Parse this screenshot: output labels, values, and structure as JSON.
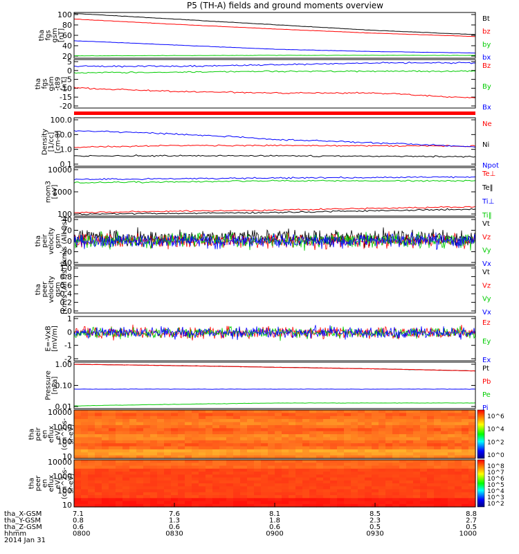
{
  "chart_data": {
    "title": "P5 (TH-A) fields and ground moments overview",
    "date": "2014 Jan 31",
    "x_ticks": [
      "0800",
      "0830",
      "0900",
      "0930",
      "1000"
    ],
    "x_extra_rows": [
      {
        "label": "tha_X-GSM",
        "values": [
          "7.1",
          "7.6",
          "8.1",
          "8.5",
          "8.8"
        ]
      },
      {
        "label": "tha_Y-GSM",
        "values": [
          "0.8",
          "1.3",
          "1.8",
          "2.3",
          "2.7"
        ]
      },
      {
        "label": "tha_Z-GSM",
        "values": [
          "0.6",
          "0.6",
          "0.6",
          "0.5",
          "0.5"
        ]
      },
      {
        "label": "hhmm",
        "values": [
          "0800",
          "0830",
          "0900",
          "0930",
          "1000"
        ]
      }
    ],
    "panels": [
      {
        "type": "line",
        "ylabel": [
          "tha",
          "fgs",
          "gsm",
          "[nT]"
        ],
        "yticks": [
          "100",
          "80",
          "60",
          "40",
          "20"
        ],
        "series": [
          {
            "name": "Bt",
            "color": "#000000",
            "values": [
              [
                0,
                100
              ],
              [
                0.25,
                88
              ],
              [
                0.5,
                76
              ],
              [
                0.75,
                64
              ],
              [
                1,
                55
              ]
            ]
          },
          {
            "name": "bz",
            "color": "#ff0000",
            "values": [
              [
                0,
                88
              ],
              [
                0.25,
                77
              ],
              [
                0.5,
                67
              ],
              [
                0.75,
                58
              ],
              [
                1,
                51
              ]
            ]
          },
          {
            "name": "by",
            "color": "#00cc00",
            "values": [
              [
                0,
                10
              ],
              [
                0.5,
                11
              ],
              [
                1,
                11
              ]
            ]
          },
          {
            "name": "bx",
            "color": "#0000ff",
            "values": [
              [
                0,
                42
              ],
              [
                0.25,
                33
              ],
              [
                0.5,
                24
              ],
              [
                0.75,
                19
              ],
              [
                1,
                16
              ]
            ]
          }
        ]
      },
      {
        "type": "line",
        "ylabel": [
          "tha",
          "fgs",
          "gsm",
          "-t89",
          "[nT]"
        ],
        "yticks": [
          "5",
          "0",
          "-5",
          "-10",
          "-15",
          "-20"
        ],
        "series": [
          {
            "name": "Bz",
            "color": "#ff0000",
            "values": [
              [
                0,
                -10
              ],
              [
                0.25,
                -12
              ],
              [
                0.5,
                -13
              ],
              [
                0.75,
                -13
              ],
              [
                1,
                -16
              ]
            ]
          },
          {
            "name": "By",
            "color": "#00cc00",
            "values": [
              [
                0,
                -1
              ],
              [
                0.5,
                0
              ],
              [
                1,
                0
              ]
            ]
          },
          {
            "name": "Bx",
            "color": "#0000ff",
            "values": [
              [
                0,
                3
              ],
              [
                0.3,
                3
              ],
              [
                0.5,
                4
              ],
              [
                0.75,
                5
              ],
              [
                1,
                5
              ]
            ]
          }
        ]
      },
      {
        "type": "line",
        "ylabel": [
          "Density",
          "[1/cc]",
          "[cm-3]"
        ],
        "yticks": [
          "100.0",
          "10.0",
          "1.0",
          "0.1"
        ],
        "series": [
          {
            "name": "Ne",
            "color": "#ff0000",
            "values": [
              [
                0,
                1.5
              ],
              [
                0.25,
                2
              ],
              [
                0.5,
                2
              ],
              [
                1,
                1.8
              ]
            ]
          },
          {
            "name": "Ni",
            "color": "#000000",
            "values": [
              [
                0,
                0.4
              ],
              [
                0.5,
                0.4
              ],
              [
                1,
                0.35
              ]
            ]
          },
          {
            "name": "Npot",
            "color": "#0000ff",
            "values": [
              [
                0,
                20
              ],
              [
                0.25,
                12
              ],
              [
                0.5,
                5
              ],
              [
                0.75,
                3
              ],
              [
                1,
                1.5
              ]
            ]
          }
        ]
      },
      {
        "type": "line",
        "ylabel": [
          "mom3",
          "[eV]"
        ],
        "yticks": [
          "10000",
          "1000",
          "100"
        ],
        "series": [
          {
            "name": "Te⊥",
            "color": "#ff0000",
            "values": [
              [
                0,
                60
              ],
              [
                0.5,
                80
              ],
              [
                1,
                120
              ]
            ]
          },
          {
            "name": "Te‖",
            "color": "#000000",
            "values": [
              [
                0,
                50
              ],
              [
                0.5,
                60
              ],
              [
                1,
                90
              ]
            ]
          },
          {
            "name": "Ti⊥",
            "color": "#0000ff",
            "values": [
              [
                0,
                3000
              ],
              [
                0.5,
                3500
              ],
              [
                1,
                4000
              ]
            ]
          },
          {
            "name": "Ti‖",
            "color": "#00cc00",
            "values": [
              [
                0,
                2000
              ],
              [
                0.5,
                2500
              ],
              [
                1,
                2500
              ]
            ]
          }
        ]
      },
      {
        "type": "noise",
        "ylabel": [
          "tha",
          "peir",
          "velocity",
          "gsm",
          "[km/s (All Qs)]"
        ],
        "yticks": [
          "40",
          "20",
          "0",
          "-20",
          "-40"
        ],
        "series": [
          {
            "name": "Vt",
            "color": "#000000"
          },
          {
            "name": "Vz",
            "color": "#ff0000"
          },
          {
            "name": "Vy",
            "color": "#00cc00"
          },
          {
            "name": "Vx",
            "color": "#0000ff"
          }
        ]
      },
      {
        "type": "empty",
        "ylabel": [
          "tha",
          "peer",
          "velocity",
          "gsm",
          "[km/s (All Qs)]"
        ],
        "yticks": [
          "1.0",
          "0.8",
          "0.6",
          "0.4",
          "0.2",
          "0.0"
        ],
        "series": [
          {
            "name": "Vt",
            "color": "#000000"
          },
          {
            "name": "Vz",
            "color": "#ff0000"
          },
          {
            "name": "Vy",
            "color": "#00cc00"
          },
          {
            "name": "Vx",
            "color": "#0000ff"
          }
        ]
      },
      {
        "type": "noise",
        "ylabel": [
          "E=-VxB",
          "[mV/m]"
        ],
        "yticks": [
          "1",
          "0",
          "-1",
          "-2"
        ],
        "series": [
          {
            "name": "Ez",
            "color": "#ff0000"
          },
          {
            "name": "Ey",
            "color": "#00cc00"
          },
          {
            "name": "Ex",
            "color": "#0000ff"
          }
        ]
      },
      {
        "type": "line",
        "ylabel": [
          "Pressure",
          "[nPa]"
        ],
        "yticks": [
          "1.00",
          "0.10",
          "0.01"
        ],
        "series": [
          {
            "name": "Pt",
            "color": "#000000",
            "values": [
              [
                0,
                3
              ],
              [
                0.5,
                2
              ],
              [
                1,
                1.2
              ]
            ]
          },
          {
            "name": "Pb",
            "color": "#ff0000",
            "values": [
              [
                0,
                3
              ],
              [
                0.5,
                2
              ],
              [
                1,
                1.2
              ]
            ]
          },
          {
            "name": "Pe",
            "color": "#00cc00",
            "values": [
              [
                0,
                0.01
              ],
              [
                0.5,
                0.015
              ],
              [
                1,
                0.015
              ]
            ]
          },
          {
            "name": "Pi",
            "color": "#0000ff",
            "values": [
              [
                0,
                0.1
              ],
              [
                0.5,
                0.1
              ],
              [
                1,
                0.1
              ]
            ]
          }
        ]
      },
      {
        "type": "heatmap",
        "ylabel": [
          "tha",
          "peir",
          "en",
          "eflux",
          "eV/",
          "(cm^2-s-",
          "sr-eV)"
        ],
        "yticks": [
          "10000",
          "1000",
          "100",
          "10"
        ],
        "colorbar_ticks": [
          "10^6",
          "10^4",
          "10^2",
          "10^0"
        ]
      },
      {
        "type": "heatmap",
        "ylabel": [
          "tha",
          "peer",
          "en",
          "eflux",
          "eV/",
          "(cm^2-s-",
          "sr-eV)"
        ],
        "yticks": [
          "10000",
          "1000",
          "100",
          "10"
        ],
        "colorbar_ticks": [
          "10^8",
          "10^7",
          "10^6",
          "10^5",
          "10^4",
          "10^3",
          "10^2"
        ]
      }
    ]
  }
}
